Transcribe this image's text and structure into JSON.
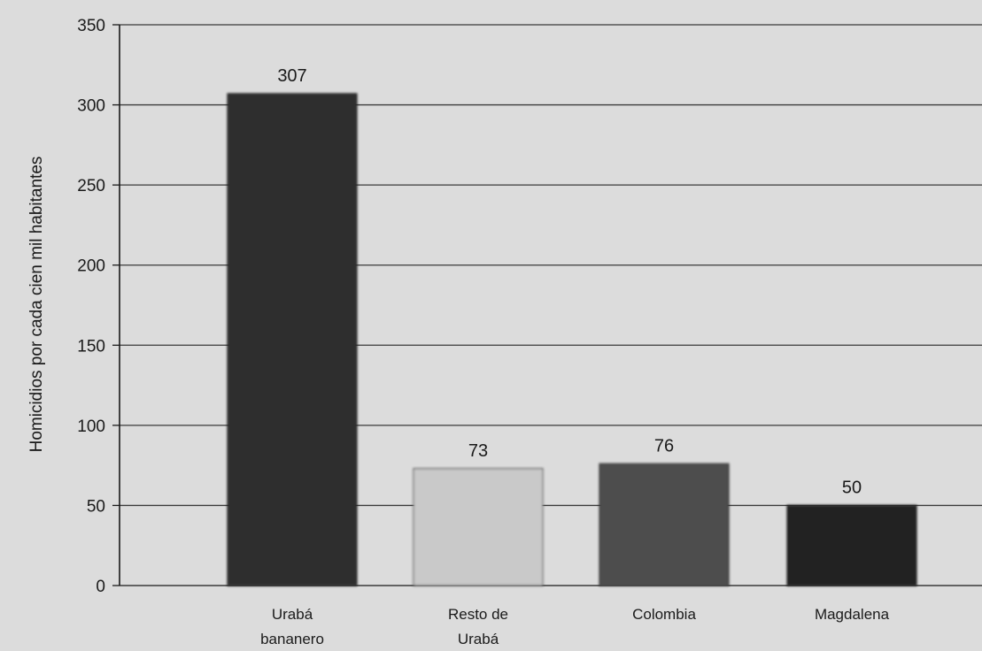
{
  "chart_data": {
    "type": "bar",
    "categories": [
      [
        "Urabá",
        "bananero"
      ],
      [
        "Resto de",
        "Urabá"
      ],
      [
        "Colombia"
      ],
      [
        "Magdalena"
      ]
    ],
    "values": [
      307,
      73,
      76,
      50
    ],
    "data_labels": [
      "307",
      "73",
      "76",
      "50"
    ],
    "ylabel": "Homicidios por cada cien mil habitantes",
    "xlabel": "",
    "ylim": [
      0,
      350
    ],
    "yticks": [
      "0",
      "50",
      "100",
      "150",
      "200",
      "250",
      "300",
      "350"
    ],
    "grid": true,
    "legend": "none",
    "colors": {
      "bars": [
        "#2e2e2e",
        "#c9c9c9",
        "#4d4d4d",
        "#232323"
      ],
      "background": "#dcdcdc",
      "gridline": "#3a3a3a",
      "axis": "#1a1a1a"
    }
  }
}
